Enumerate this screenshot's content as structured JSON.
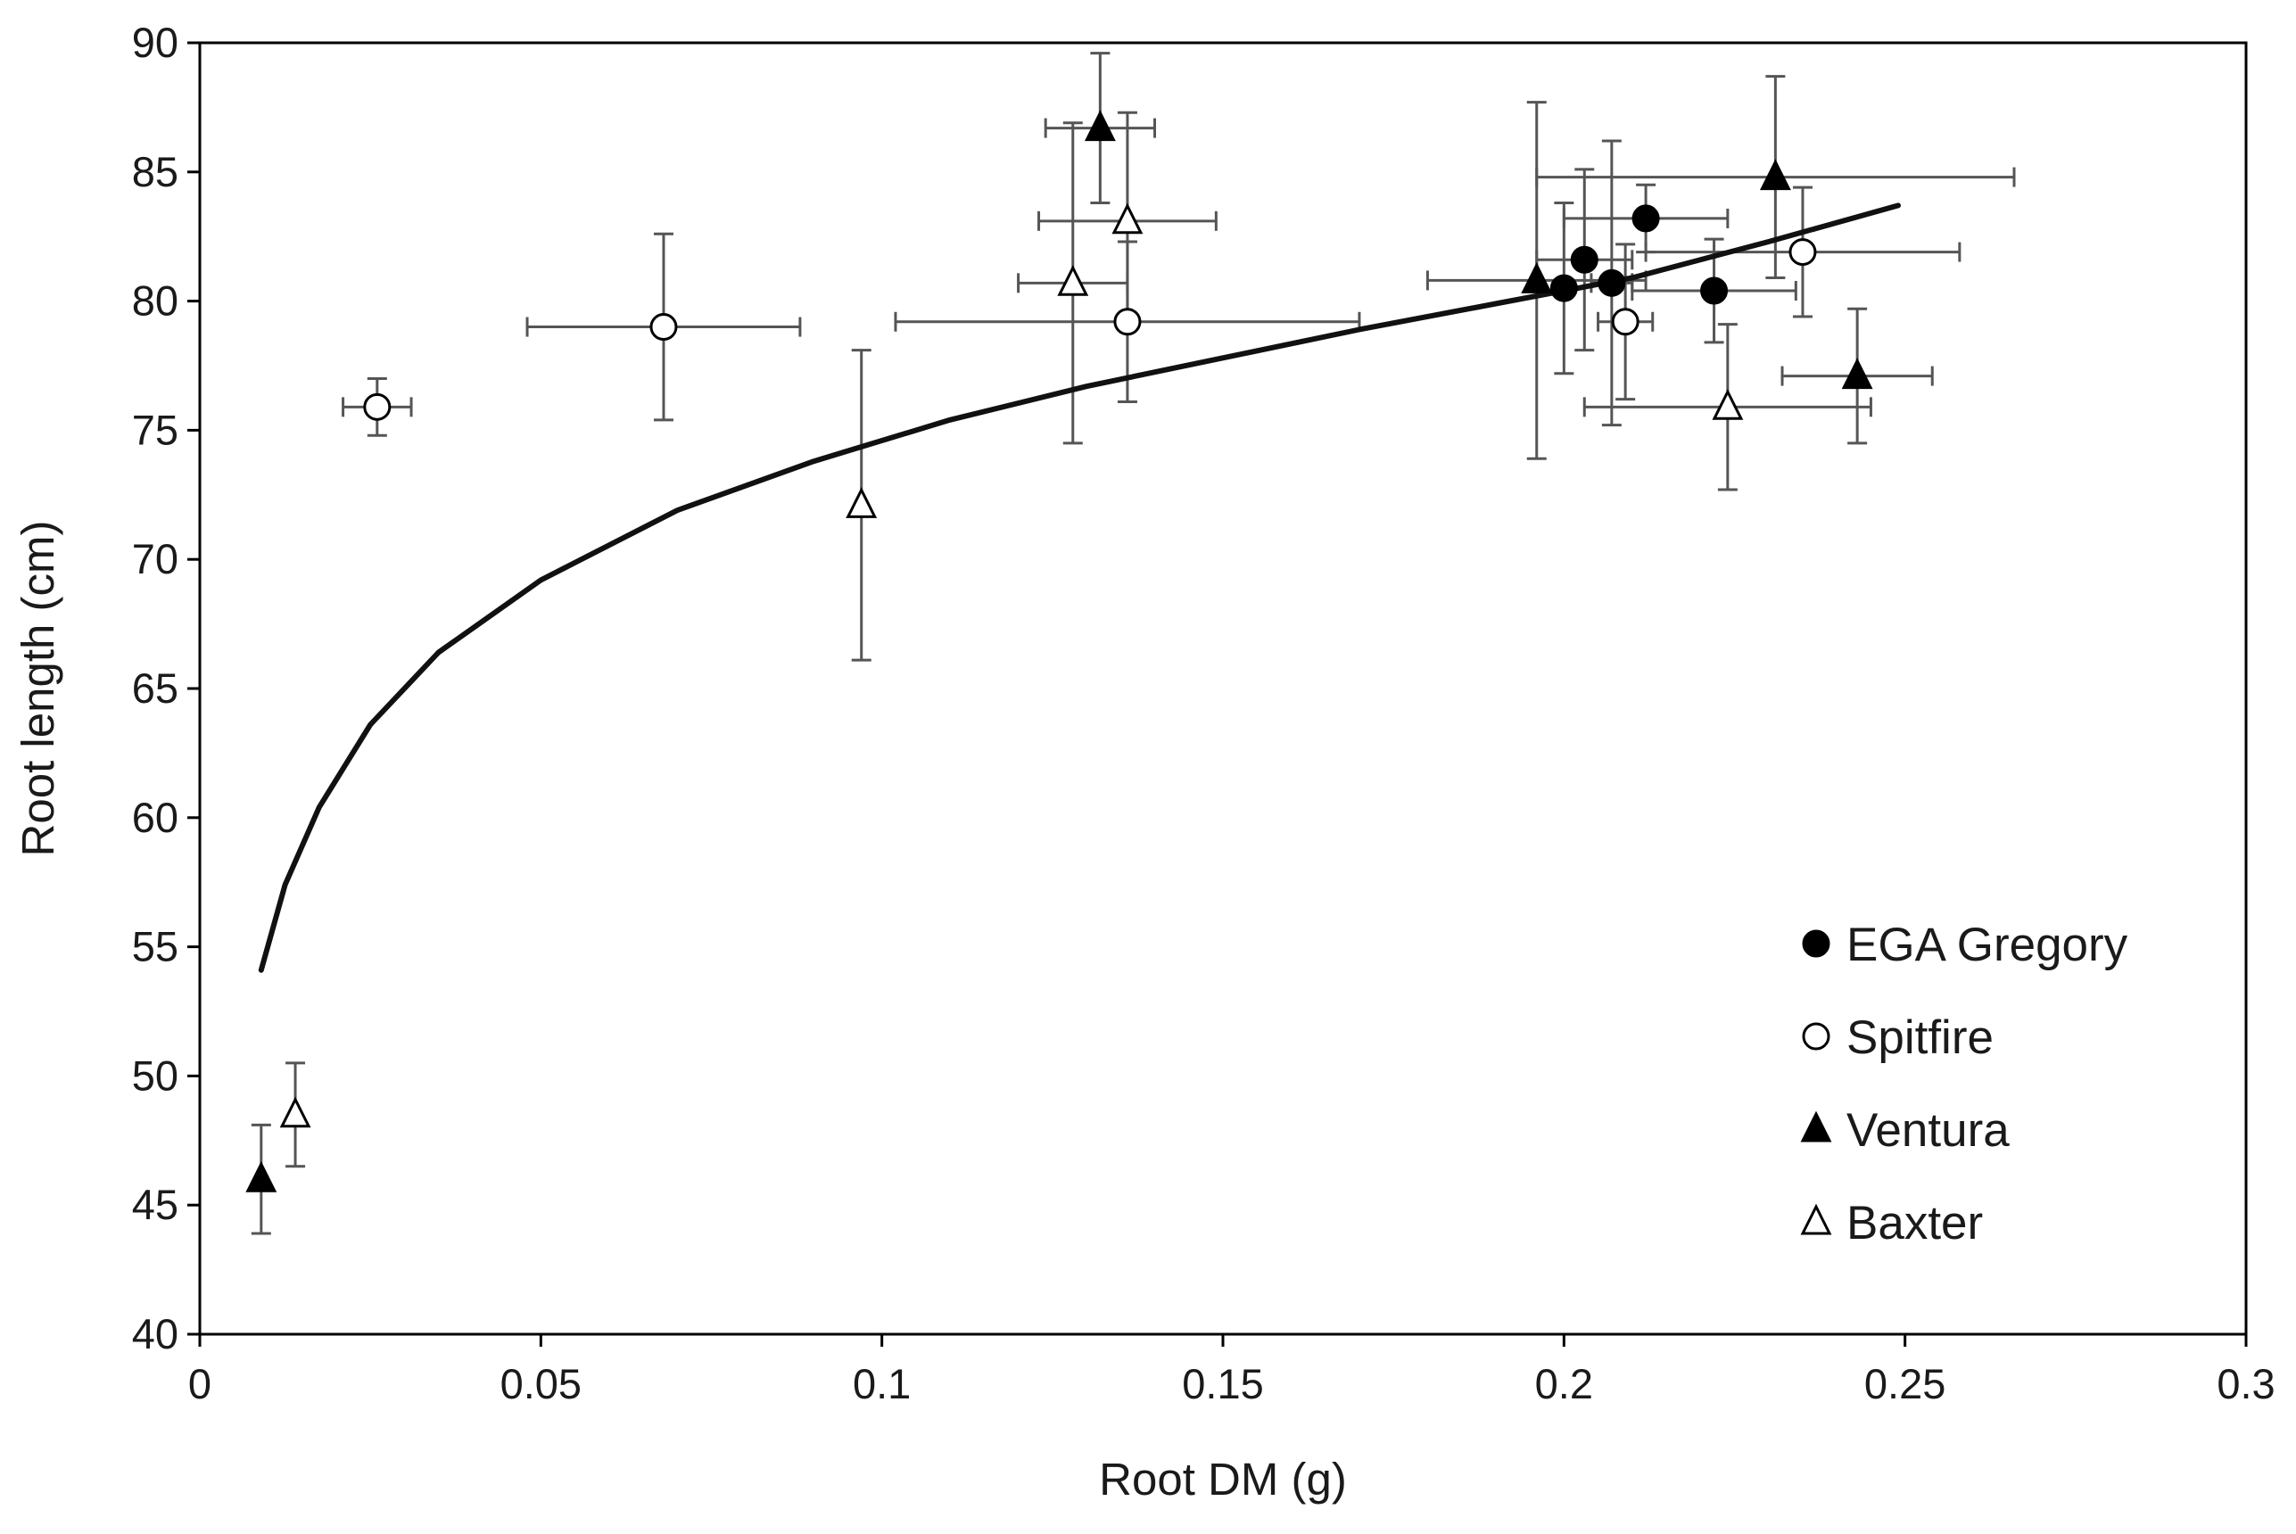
{
  "chart_data": {
    "type": "scatter",
    "title": "",
    "xlabel": "Root DM (g)",
    "ylabel": "Root length (cm)",
    "xlim": [
      0,
      0.3
    ],
    "ylim": [
      40,
      90
    ],
    "xticks": [
      0,
      0.05,
      0.1,
      0.15,
      0.2,
      0.25,
      0.3
    ],
    "xtick_labels": [
      "0",
      "0.05",
      "0.1",
      "0.15",
      "0.2",
      "0.25",
      "0.3"
    ],
    "yticks": [
      40,
      45,
      50,
      55,
      60,
      65,
      70,
      75,
      80,
      85,
      90
    ],
    "ytick_labels": [
      "40",
      "45",
      "50",
      "55",
      "60",
      "65",
      "70",
      "75",
      "80",
      "85",
      "90"
    ],
    "grid": false,
    "legend_position": "bottom-right",
    "series": [
      {
        "name": "EGA Gregory",
        "marker": "circle-filled",
        "points": [
          {
            "x": 0.2,
            "y": 80.5,
            "xerr": 0.0,
            "yerr": 3.3
          },
          {
            "x": 0.203,
            "y": 81.6,
            "xerr": 0.007,
            "yerr": 3.5
          },
          {
            "x": 0.207,
            "y": 80.7,
            "xerr": 0.003,
            "yerr": 5.5
          },
          {
            "x": 0.212,
            "y": 83.2,
            "xerr": 0.012,
            "yerr": 1.3
          },
          {
            "x": 0.222,
            "y": 80.4,
            "xerr": 0.012,
            "yerr": 2.0
          }
        ]
      },
      {
        "name": "Spitfire",
        "marker": "circle-open",
        "points": [
          {
            "x": 0.026,
            "y": 75.9,
            "xerr": 0.005,
            "yerr": 1.1
          },
          {
            "x": 0.068,
            "y": 79.0,
            "xerr": 0.02,
            "yerr": 3.6
          },
          {
            "x": 0.136,
            "y": 79.2,
            "xerr": 0.034,
            "yerr": 3.1
          },
          {
            "x": 0.209,
            "y": 79.2,
            "xerr": 0.004,
            "yerr": 3.0
          },
          {
            "x": 0.235,
            "y": 81.9,
            "xerr": 0.023,
            "yerr": 2.5
          }
        ]
      },
      {
        "name": "Ventura",
        "marker": "triangle-filled",
        "points": [
          {
            "x": 0.009,
            "y": 46.0,
            "xerr": 0.0,
            "yerr": 2.1
          },
          {
            "x": 0.132,
            "y": 86.7,
            "xerr": 0.008,
            "yerr": 2.9
          },
          {
            "x": 0.196,
            "y": 80.8,
            "xerr": 0.016,
            "yerr": 6.9
          },
          {
            "x": 0.231,
            "y": 84.8,
            "xerr": 0.035,
            "yerr": 3.9
          },
          {
            "x": 0.243,
            "y": 77.1,
            "xerr": 0.011,
            "yerr": 2.6
          }
        ]
      },
      {
        "name": "Baxter",
        "marker": "triangle-open",
        "points": [
          {
            "x": 0.014,
            "y": 48.5,
            "xerr": 0.0,
            "yerr": 2.0
          },
          {
            "x": 0.097,
            "y": 72.1,
            "xerr": 0.0,
            "yerr": 6.0
          },
          {
            "x": 0.128,
            "y": 80.7,
            "xerr": 0.008,
            "yerr": 6.2
          },
          {
            "x": 0.136,
            "y": 83.1,
            "xerr": 0.013,
            "yerr": 4.2
          },
          {
            "x": 0.224,
            "y": 75.9,
            "xerr": 0.021,
            "yerr": 3.2
          }
        ]
      }
    ],
    "trendline": {
      "type": "power",
      "x": [
        0.009,
        0.0125,
        0.0175,
        0.025,
        0.035,
        0.05,
        0.07,
        0.09,
        0.11,
        0.13,
        0.15,
        0.17,
        0.19,
        0.21,
        0.23,
        0.249
      ],
      "y": [
        54.1,
        57.4,
        60.4,
        63.6,
        66.4,
        69.2,
        71.9,
        73.8,
        75.4,
        76.7,
        77.8,
        78.9,
        79.9,
        80.9,
        82.3,
        83.7
      ]
    }
  }
}
